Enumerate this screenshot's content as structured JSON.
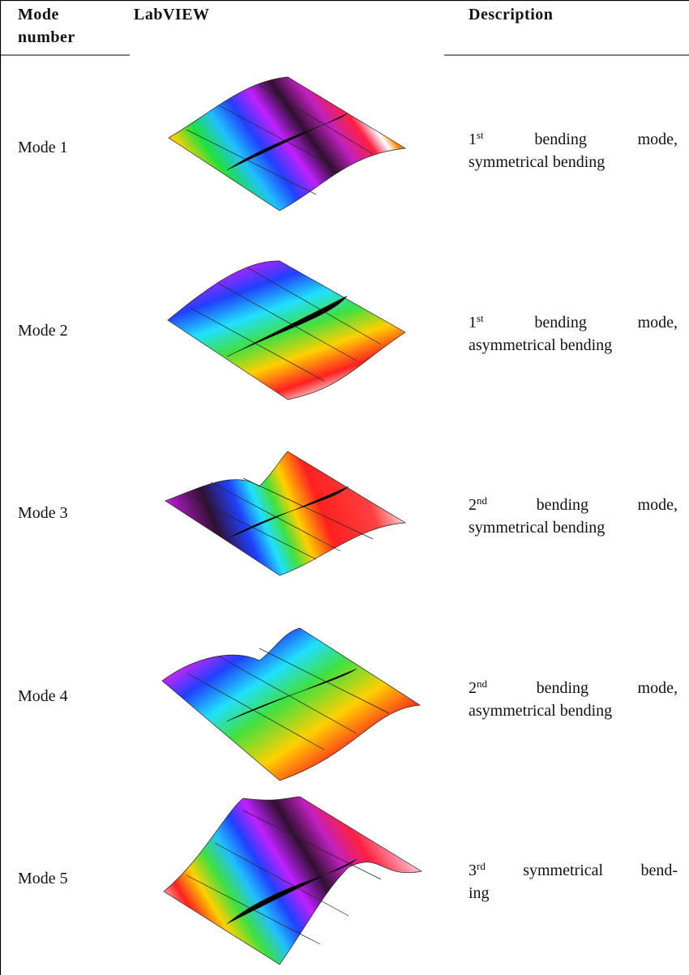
{
  "header": {
    "columns": [
      "Mode number",
      "LabVIEW",
      "Description"
    ]
  },
  "rows": [
    {
      "mode": "Mode 1",
      "ordinal": "1",
      "suffix": "st",
      "first_line": "bending mode,",
      "rest": "symmetrical bending"
    },
    {
      "mode": "Mode 2",
      "ordinal": "1",
      "suffix": "st",
      "first_line": "bending mode,",
      "rest": "asymmetrical bending"
    },
    {
      "mode": "Mode 3",
      "ordinal": "2",
      "suffix": "nd",
      "first_line": "bending mode,",
      "rest": "symmetrical bending"
    },
    {
      "mode": "Mode 4",
      "ordinal": "2",
      "suffix": "nd",
      "first_line": "bending mode,",
      "rest": "asymmetrical bending"
    },
    {
      "mode": "Mode 5",
      "ordinal": "3",
      "suffix": "rd",
      "first_line": "symmetrical bend-",
      "rest": "ing"
    }
  ]
}
